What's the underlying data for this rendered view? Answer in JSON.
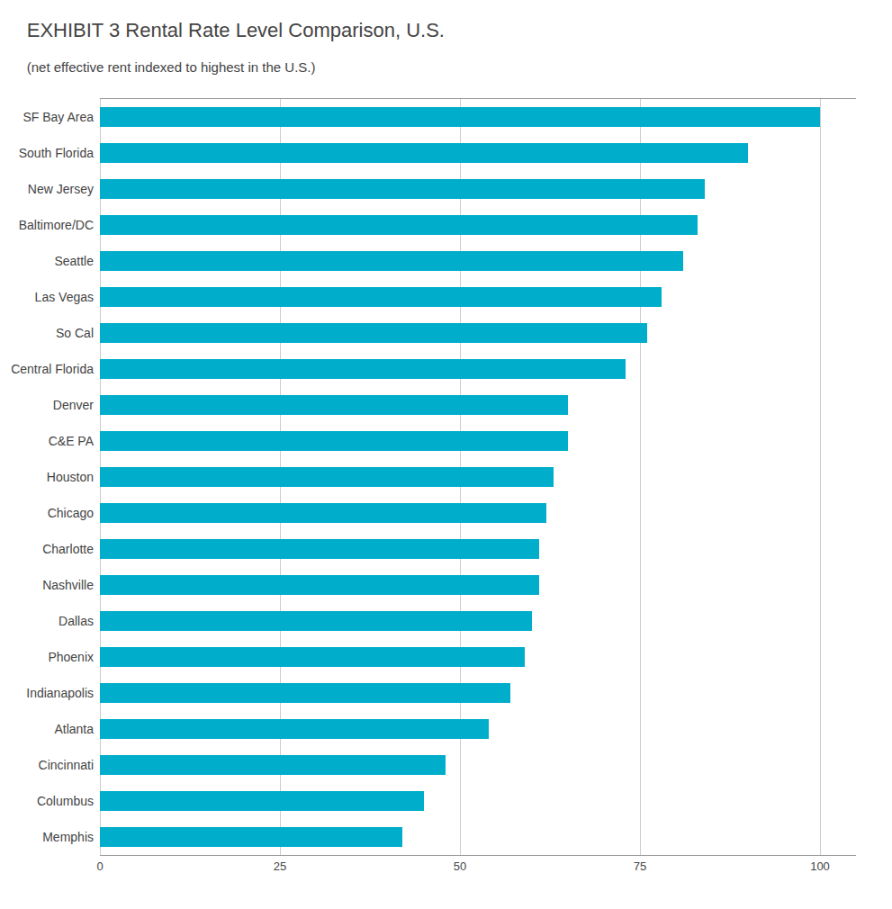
{
  "chart_data": {
    "type": "bar",
    "orientation": "horizontal",
    "title": "EXHIBIT 3 Rental Rate Level Comparison, U.S.",
    "subtitle": "(net effective rent indexed to highest in the U.S.)",
    "categories": [
      "SF Bay Area",
      "South Florida",
      "New Jersey",
      "Baltimore/DC",
      "Seattle",
      "Las Vegas",
      "So Cal",
      "Central Florida",
      "Denver",
      "C&E PA",
      "Houston",
      "Chicago",
      "Charlotte",
      "Nashville",
      "Dallas",
      "Phoenix",
      "Indianapolis",
      "Atlanta",
      "Cincinnati",
      "Columbus",
      "Memphis"
    ],
    "values": [
      100,
      90,
      84,
      83,
      81,
      78,
      76,
      73,
      65,
      65,
      63,
      62,
      61,
      61,
      60,
      59,
      57,
      54,
      48,
      45,
      42
    ],
    "color": "#00AECC",
    "xlim": [
      0,
      105
    ],
    "xticks": [
      0,
      25,
      50,
      75,
      100
    ],
    "grid": true
  }
}
